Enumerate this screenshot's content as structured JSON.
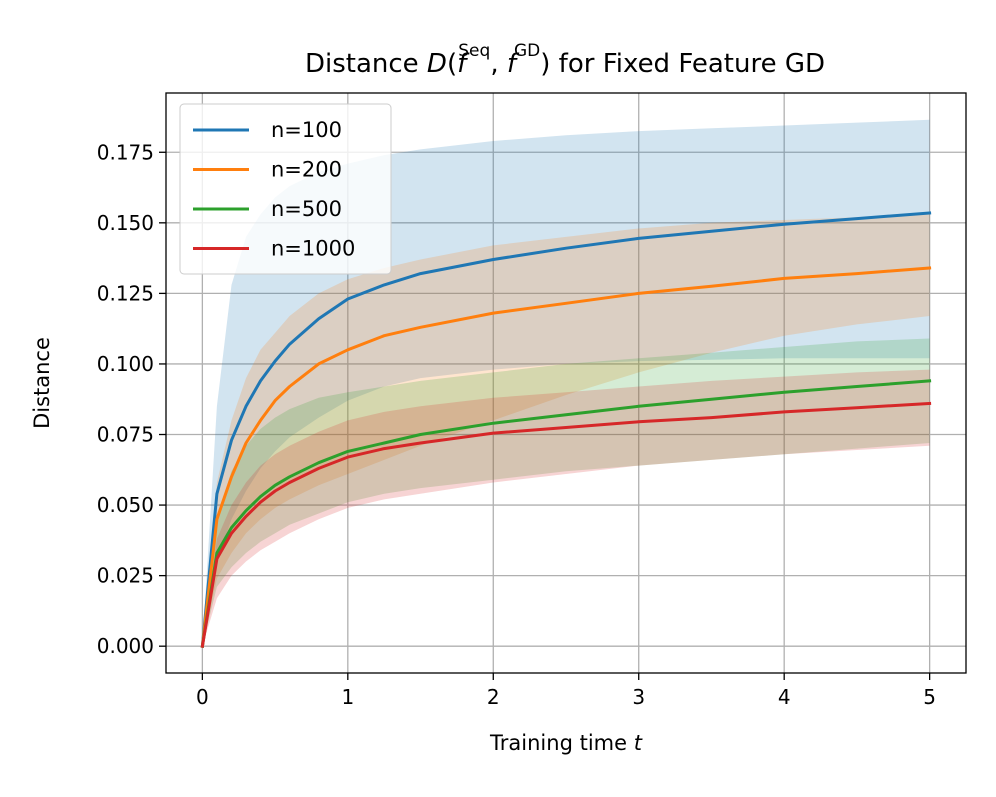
{
  "chart_data": {
    "type": "line",
    "title_parts": [
      "Distance ",
      "D",
      "(",
      "f",
      "Seq",
      ", ",
      "f",
      "GD",
      ") for Fixed Feature GD"
    ],
    "xlabel_parts": [
      "Training time ",
      "t"
    ],
    "ylabel": "Distance",
    "xlim": [
      -0.25,
      5.25
    ],
    "ylim": [
      -0.0095,
      0.196
    ],
    "xticks": [
      0,
      1,
      2,
      3,
      4,
      5
    ],
    "xtick_labels": [
      "0",
      "1",
      "2",
      "3",
      "4",
      "5"
    ],
    "yticks": [
      0,
      0.025,
      0.05,
      0.075,
      0.1,
      0.125,
      0.15,
      0.175
    ],
    "ytick_labels": [
      "0.000",
      "0.025",
      "0.050",
      "0.075",
      "0.100",
      "0.125",
      "0.150",
      "0.175"
    ],
    "grid": true,
    "legend_position": "top-left",
    "x": [
      0,
      0.1,
      0.2,
      0.3,
      0.4,
      0.5,
      0.6,
      0.8,
      1.0,
      1.25,
      1.5,
      2.0,
      2.5,
      3.0,
      3.5,
      4.0,
      4.5,
      5.0
    ],
    "series": [
      {
        "name": "n=100",
        "color": "#1f77b4",
        "values": [
          0,
          0.054,
          0.073,
          0.085,
          0.094,
          0.101,
          0.107,
          0.116,
          0.123,
          0.128,
          0.132,
          0.137,
          0.141,
          0.1445,
          0.147,
          0.1495,
          0.1515,
          0.1535
        ],
        "lower": [
          0,
          0.03,
          0.045,
          0.055,
          0.063,
          0.069,
          0.074,
          0.081,
          0.087,
          0.092,
          0.095,
          0.098,
          0.1,
          0.101,
          0.1015,
          0.102,
          0.102,
          0.102
        ],
        "upper": [
          0,
          0.085,
          0.128,
          0.145,
          0.153,
          0.159,
          0.163,
          0.168,
          0.171,
          0.174,
          0.176,
          0.179,
          0.181,
          0.1825,
          0.1835,
          0.1845,
          0.1855,
          0.1865
        ]
      },
      {
        "name": "n=200",
        "color": "#ff7f0e",
        "values": [
          0,
          0.045,
          0.06,
          0.072,
          0.08,
          0.087,
          0.092,
          0.1,
          0.105,
          0.11,
          0.113,
          0.118,
          0.1215,
          0.125,
          0.1275,
          0.1303,
          0.132,
          0.134
        ],
        "lower": [
          0,
          0.024,
          0.033,
          0.04,
          0.045,
          0.049,
          0.052,
          0.057,
          0.061,
          0.066,
          0.071,
          0.08,
          0.089,
          0.097,
          0.104,
          0.11,
          0.114,
          0.117
        ],
        "upper": [
          0,
          0.058,
          0.08,
          0.095,
          0.105,
          0.111,
          0.117,
          0.125,
          0.13,
          0.134,
          0.137,
          0.142,
          0.145,
          0.148,
          0.15,
          0.151,
          0.152,
          0.153
        ]
      },
      {
        "name": "n=500",
        "color": "#2ca02c",
        "values": [
          0,
          0.033,
          0.042,
          0.048,
          0.053,
          0.057,
          0.06,
          0.065,
          0.069,
          0.072,
          0.075,
          0.079,
          0.082,
          0.085,
          0.0875,
          0.09,
          0.092,
          0.094
        ],
        "lower": [
          0,
          0.021,
          0.028,
          0.033,
          0.037,
          0.04,
          0.043,
          0.047,
          0.051,
          0.054,
          0.056,
          0.059,
          0.062,
          0.064,
          0.066,
          0.068,
          0.07,
          0.072
        ],
        "upper": [
          0,
          0.045,
          0.062,
          0.071,
          0.077,
          0.081,
          0.084,
          0.088,
          0.09,
          0.092,
          0.094,
          0.097,
          0.1,
          0.102,
          0.104,
          0.106,
          0.108,
          0.109
        ]
      },
      {
        "name": "n=1000",
        "color": "#d62728",
        "values": [
          0,
          0.031,
          0.04,
          0.046,
          0.051,
          0.055,
          0.058,
          0.063,
          0.067,
          0.07,
          0.072,
          0.0755,
          0.0775,
          0.0795,
          0.081,
          0.083,
          0.0845,
          0.086
        ],
        "lower": [
          0,
          0.017,
          0.025,
          0.03,
          0.034,
          0.037,
          0.04,
          0.045,
          0.049,
          0.052,
          0.054,
          0.058,
          0.061,
          0.064,
          0.066,
          0.068,
          0.0695,
          0.071
        ],
        "upper": [
          0,
          0.038,
          0.05,
          0.058,
          0.064,
          0.068,
          0.071,
          0.076,
          0.08,
          0.083,
          0.085,
          0.088,
          0.09,
          0.092,
          0.094,
          0.0955,
          0.097,
          0.098
        ]
      }
    ]
  }
}
